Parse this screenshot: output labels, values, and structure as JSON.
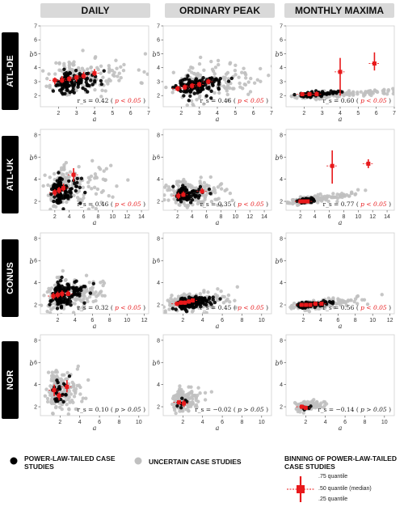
{
  "columns": [
    "DAILY",
    "ORDINARY PEAK",
    "MONTHLY MAXIMA"
  ],
  "rows": [
    "ATL-DE",
    "ATL-UK",
    "CONUS",
    "NOR"
  ],
  "legend": {
    "power_law": "POWER-LAW-TAILED CASE STUDIES",
    "uncertain": "UNCERTAIN CASE STUDIES",
    "binning_title": "BINNING OF POWER-LAW-TAILED CASE STUDIES",
    "q75": ".75 quantile",
    "q50": ".50 quantile (median)",
    "q25": ".25 quantile"
  },
  "colors": {
    "power_law": "#000000",
    "uncertain": "#c0c0c0",
    "binning": "#e8191b"
  },
  "chart_data": [
    {
      "type": "scatter",
      "row": "ATL-DE",
      "column": "DAILY",
      "xlabel": "a",
      "ylabel": "b",
      "xlim": [
        1,
        7
      ],
      "ylim": [
        1.2,
        7
      ],
      "xticks": [
        2,
        3,
        4,
        5,
        6,
        7
      ],
      "yticks": [
        2,
        3,
        4,
        5,
        6,
        7
      ],
      "stat_label": "r_s = 0.42",
      "p_label": "p < 0.05",
      "seed": 11,
      "cloud_black": {
        "cx": 2.6,
        "cy": 3.0,
        "sx": 0.55,
        "sy": 0.35,
        "n": 120
      },
      "cloud_gray": {
        "cx": 3.0,
        "cy": 3.3,
        "sx": 1.1,
        "sy": 0.7,
        "n": 170
      },
      "bins": [
        {
          "x": 1.8,
          "q25": 2.8,
          "q50": 3.1,
          "q75": 3.3
        },
        {
          "x": 2.2,
          "q25": 2.9,
          "q50": 3.1,
          "q75": 3.4
        },
        {
          "x": 2.6,
          "q25": 3.0,
          "q50": 3.2,
          "q75": 3.4
        },
        {
          "x": 3.0,
          "q25": 3.0,
          "q50": 3.3,
          "q75": 3.5
        },
        {
          "x": 3.4,
          "q25": 3.2,
          "q50": 3.4,
          "q75": 3.7
        },
        {
          "x": 4.0,
          "q25": 3.4,
          "q50": 3.6,
          "q75": 3.9
        }
      ]
    },
    {
      "type": "scatter",
      "row": "ATL-DE",
      "column": "ORDINARY PEAK",
      "xlabel": "a",
      "ylabel": "b",
      "xlim": [
        1,
        7
      ],
      "ylim": [
        1.2,
        7
      ],
      "xticks": [
        2,
        3,
        4,
        5,
        6,
        7
      ],
      "yticks": [
        2,
        3,
        4,
        5,
        6,
        7
      ],
      "stat_label": "r_s = 0.46",
      "p_label": "p < 0.05",
      "seed": 23,
      "cloud_black": {
        "cx": 2.6,
        "cy": 2.7,
        "sx": 0.6,
        "sy": 0.35,
        "n": 130
      },
      "cloud_gray": {
        "cx": 3.1,
        "cy": 2.9,
        "sx": 1.2,
        "sy": 0.6,
        "n": 160
      },
      "bins": [
        {
          "x": 1.8,
          "q25": 2.3,
          "q50": 2.5,
          "q75": 2.7
        },
        {
          "x": 2.2,
          "q25": 2.4,
          "q50": 2.6,
          "q75": 2.8
        },
        {
          "x": 2.6,
          "q25": 2.5,
          "q50": 2.7,
          "q75": 2.9
        },
        {
          "x": 3.0,
          "q25": 2.6,
          "q50": 2.8,
          "q75": 3.0
        },
        {
          "x": 3.5,
          "q25": 2.8,
          "q50": 3.0,
          "q75": 3.2
        }
      ]
    },
    {
      "type": "scatter",
      "row": "ATL-DE",
      "column": "MONTHLY MAXIMA",
      "xlabel": "a",
      "ylabel": "b",
      "xlim": [
        1,
        7
      ],
      "ylim": [
        1.2,
        7
      ],
      "xticks": [
        2,
        3,
        4,
        5,
        6,
        7
      ],
      "yticks": [
        2,
        3,
        4,
        5,
        6,
        7
      ],
      "stat_label": "r_s = 0.60",
      "p_label": "p < 0.05",
      "seed": 37,
      "cloud_black": {
        "cx": 2.4,
        "cy": 2.1,
        "sx": 0.5,
        "sy": 0.1,
        "n": 80
      },
      "cloud_gray": {
        "cx": 3.3,
        "cy": 2.05,
        "sx": 1.4,
        "sy": 0.12,
        "n": 170
      },
      "bins": [
        {
          "x": 1.9,
          "q25": 2.0,
          "q50": 2.1,
          "q75": 2.2
        },
        {
          "x": 2.3,
          "q25": 2.0,
          "q50": 2.1,
          "q75": 2.2
        },
        {
          "x": 2.7,
          "q25": 2.0,
          "q50": 2.1,
          "q75": 2.3
        },
        {
          "x": 4.0,
          "q25": 2.0,
          "q50": 3.7,
          "q75": 4.7
        },
        {
          "x": 5.9,
          "q25": 3.8,
          "q50": 4.3,
          "q75": 5.1
        }
      ]
    },
    {
      "type": "scatter",
      "row": "ATL-UK",
      "column": "DAILY",
      "xlabel": "a",
      "ylabel": "b",
      "xlim": [
        0,
        15
      ],
      "ylim": [
        1.2,
        8.5
      ],
      "xticks": [
        2,
        4,
        6,
        8,
        10,
        12,
        14
      ],
      "yticks": [
        2,
        4,
        6,
        8
      ],
      "stat_label": "r_s = 0.46",
      "p_label": "p < 0.05",
      "seed": 41,
      "cloud_black": {
        "cx": 2.8,
        "cy": 3.0,
        "sx": 0.9,
        "sy": 0.6,
        "n": 110
      },
      "cloud_gray": {
        "cx": 3.5,
        "cy": 3.3,
        "sx": 2.2,
        "sy": 0.9,
        "n": 170
      },
      "bins": [
        {
          "x": 2.0,
          "q25": 2.5,
          "q50": 2.8,
          "q75": 3.1
        },
        {
          "x": 2.6,
          "q25": 2.7,
          "q50": 3.0,
          "q75": 3.3
        },
        {
          "x": 3.2,
          "q25": 2.9,
          "q50": 3.2,
          "q75": 3.6
        },
        {
          "x": 4.6,
          "q25": 3.8,
          "q50": 4.4,
          "q75": 5.0
        }
      ]
    },
    {
      "type": "scatter",
      "row": "ATL-UK",
      "column": "ORDINARY PEAK",
      "xlabel": "a",
      "ylabel": "b",
      "xlim": [
        0,
        15
      ],
      "ylim": [
        1.2,
        8.5
      ],
      "xticks": [
        2,
        4,
        6,
        8,
        10,
        12,
        14
      ],
      "yticks": [
        2,
        4,
        6,
        8
      ],
      "stat_label": "r_s = 0.35",
      "p_label": "p < 0.05",
      "seed": 53,
      "cloud_black": {
        "cx": 2.9,
        "cy": 2.6,
        "sx": 1.0,
        "sy": 0.35,
        "n": 90
      },
      "cloud_gray": {
        "cx": 3.2,
        "cy": 2.7,
        "sx": 2.0,
        "sy": 0.6,
        "n": 180
      },
      "bins": [
        {
          "x": 2.1,
          "q25": 2.2,
          "q50": 2.5,
          "q75": 2.8
        },
        {
          "x": 2.8,
          "q25": 2.4,
          "q50": 2.6,
          "q75": 2.9
        },
        {
          "x": 5.4,
          "q25": 2.7,
          "q50": 2.9,
          "q75": 3.2
        }
      ]
    },
    {
      "type": "scatter",
      "row": "ATL-UK",
      "column": "MONTHLY MAXIMA",
      "xlabel": "a",
      "ylabel": "b",
      "xlim": [
        0,
        15
      ],
      "ylim": [
        1.2,
        8.5
      ],
      "xticks": [
        2,
        4,
        6,
        8,
        10,
        12,
        14
      ],
      "yticks": [
        2,
        4,
        6,
        8
      ],
      "stat_label": "r_s = 0.77",
      "p_label": "p < 0.05",
      "seed": 67,
      "cloud_black": {
        "cx": 2.5,
        "cy": 2.05,
        "sx": 0.6,
        "sy": 0.1,
        "n": 60
      },
      "cloud_gray": {
        "cx": 3.0,
        "cy": 2.1,
        "sx": 2.0,
        "sy": 0.15,
        "n": 160
      },
      "bins": [
        {
          "x": 2.0,
          "q25": 1.9,
          "q50": 2.0,
          "q75": 2.1
        },
        {
          "x": 2.5,
          "q25": 1.9,
          "q50": 2.0,
          "q75": 2.1
        },
        {
          "x": 3.0,
          "q25": 1.9,
          "q50": 2.0,
          "q75": 2.1
        },
        {
          "x": 6.4,
          "q25": 3.6,
          "q50": 5.2,
          "q75": 6.6
        },
        {
          "x": 11.4,
          "q25": 5.0,
          "q50": 5.4,
          "q75": 5.8
        }
      ]
    },
    {
      "type": "scatter",
      "row": "CONUS",
      "column": "DAILY",
      "xlabel": "a",
      "ylabel": "b",
      "xlim": [
        0,
        12.5
      ],
      "ylim": [
        1.2,
        8.5
      ],
      "xticks": [
        2,
        4,
        6,
        8,
        10,
        12
      ],
      "yticks": [
        2,
        4,
        6,
        8
      ],
      "stat_label": "r_s = 0.32",
      "p_label": "p < 0.05",
      "seed": 79,
      "cloud_black": {
        "cx": 2.5,
        "cy": 2.9,
        "sx": 0.9,
        "sy": 0.55,
        "n": 130
      },
      "cloud_gray": {
        "cx": 2.6,
        "cy": 2.9,
        "sx": 1.5,
        "sy": 0.7,
        "n": 220
      },
      "bins": [
        {
          "x": 1.5,
          "q25": 2.5,
          "q50": 2.8,
          "q75": 3.1
        },
        {
          "x": 2.0,
          "q25": 2.6,
          "q50": 2.9,
          "q75": 3.2
        },
        {
          "x": 2.5,
          "q25": 2.7,
          "q50": 3.0,
          "q75": 3.3
        },
        {
          "x": 3.2,
          "q25": 2.8,
          "q50": 3.0,
          "q75": 3.3
        }
      ]
    },
    {
      "type": "scatter",
      "row": "CONUS",
      "column": "ORDINARY PEAK",
      "xlabel": "a",
      "ylabel": "b",
      "xlim": [
        0,
        11
      ],
      "ylim": [
        1.2,
        8.5
      ],
      "xticks": [
        2,
        4,
        6,
        8,
        10
      ],
      "yticks": [
        2,
        4,
        6,
        8
      ],
      "stat_label": "r_s = 0.45",
      "p_label": "p < 0.05",
      "seed": 83,
      "cloud_black": {
        "cx": 2.4,
        "cy": 2.2,
        "sx": 0.9,
        "sy": 0.25,
        "n": 150
      },
      "cloud_gray": {
        "cx": 2.4,
        "cy": 2.2,
        "sx": 1.4,
        "sy": 0.4,
        "n": 220
      },
      "bins": [
        {
          "x": 1.4,
          "q25": 1.9,
          "q50": 2.1,
          "q75": 2.3
        },
        {
          "x": 1.8,
          "q25": 2.0,
          "q50": 2.2,
          "q75": 2.4
        },
        {
          "x": 2.2,
          "q25": 2.0,
          "q50": 2.2,
          "q75": 2.4
        },
        {
          "x": 2.6,
          "q25": 2.1,
          "q50": 2.3,
          "q75": 2.5
        },
        {
          "x": 3.0,
          "q25": 2.2,
          "q50": 2.4,
          "q75": 2.6
        }
      ]
    },
    {
      "type": "scatter",
      "row": "CONUS",
      "column": "MONTHLY MAXIMA",
      "xlabel": "a",
      "ylabel": "b",
      "xlim": [
        0,
        12.5
      ],
      "ylim": [
        1.2,
        8.5
      ],
      "xticks": [
        2,
        4,
        6,
        8,
        10,
        12
      ],
      "yticks": [
        2,
        4,
        6,
        8
      ],
      "stat_label": "r_s = 0.56",
      "p_label": "p < 0.05",
      "seed": 97,
      "cloud_black": {
        "cx": 2.6,
        "cy": 2.0,
        "sx": 1.0,
        "sy": 0.12,
        "n": 90
      },
      "cloud_gray": {
        "cx": 2.8,
        "cy": 2.0,
        "sx": 1.8,
        "sy": 0.2,
        "n": 200
      },
      "bins": [
        {
          "x": 1.8,
          "q25": 1.9,
          "q50": 2.0,
          "q75": 2.1
        },
        {
          "x": 2.3,
          "q25": 1.9,
          "q50": 2.0,
          "q75": 2.1
        },
        {
          "x": 2.8,
          "q25": 1.9,
          "q50": 2.0,
          "q75": 2.1
        },
        {
          "x": 3.4,
          "q25": 1.9,
          "q50": 2.1,
          "q75": 2.2
        },
        {
          "x": 4.1,
          "q25": 2.0,
          "q50": 2.1,
          "q75": 2.2
        }
      ]
    },
    {
      "type": "scatter",
      "row": "NOR",
      "column": "DAILY",
      "xlabel": "a",
      "ylabel": "b",
      "xlim": [
        0,
        11
      ],
      "ylim": [
        1.2,
        8.5
      ],
      "xticks": [
        2,
        4,
        6,
        8,
        10
      ],
      "yticks": [
        2,
        4,
        6,
        8
      ],
      "stat_label": "r_s = 0.10",
      "p_label": "p > 0.05",
      "seed": 101,
      "cloud_black": {
        "cx": 1.8,
        "cy": 3.3,
        "sx": 0.4,
        "sy": 0.6,
        "n": 25
      },
      "cloud_gray": {
        "cx": 1.8,
        "cy": 3.4,
        "sx": 0.8,
        "sy": 0.9,
        "n": 170
      },
      "bins": [
        {
          "x": 1.4,
          "q25": 3.0,
          "q50": 3.5,
          "q75": 4.0
        },
        {
          "x": 1.9,
          "q25": 2.6,
          "q50": 3.0,
          "q75": 3.3
        },
        {
          "x": 2.7,
          "q25": 3.3,
          "q50": 3.8,
          "q75": 4.4
        }
      ]
    },
    {
      "type": "scatter",
      "row": "NOR",
      "column": "ORDINARY PEAK",
      "xlabel": "a",
      "ylabel": "b",
      "xlim": [
        0,
        11
      ],
      "ylim": [
        1.2,
        8.5
      ],
      "xticks": [
        2,
        4,
        6,
        8,
        10
      ],
      "yticks": [
        2,
        4,
        6,
        8
      ],
      "stat_label": "r_s = −0.02",
      "p_label": "p > 0.05",
      "seed": 113,
      "cloud_black": {
        "cx": 2.0,
        "cy": 2.4,
        "sx": 0.4,
        "sy": 0.3,
        "n": 10
      },
      "cloud_gray": {
        "cx": 1.9,
        "cy": 2.5,
        "sx": 0.7,
        "sy": 0.5,
        "n": 160
      },
      "bins": [
        {
          "x": 1.6,
          "q25": 2.2,
          "q50": 2.4,
          "q75": 2.6
        },
        {
          "x": 2.1,
          "q25": 2.0,
          "q50": 2.3,
          "q75": 2.6
        }
      ]
    },
    {
      "type": "scatter",
      "row": "NOR",
      "column": "MONTHLY MAXIMA",
      "xlabel": "a",
      "ylabel": "b",
      "xlim": [
        0,
        11
      ],
      "ylim": [
        1.2,
        8.5
      ],
      "xticks": [
        2,
        4,
        6,
        8,
        10
      ],
      "yticks": [
        2,
        4,
        6,
        8
      ],
      "stat_label": "r_s = −0.14",
      "p_label": "p > 0.05",
      "seed": 127,
      "cloud_black": {
        "cx": 2.0,
        "cy": 2.0,
        "sx": 0.3,
        "sy": 0.1,
        "n": 8
      },
      "cloud_gray": {
        "cx": 1.9,
        "cy": 2.0,
        "sx": 0.7,
        "sy": 0.2,
        "n": 150
      },
      "bins": [
        {
          "x": 1.6,
          "q25": 1.8,
          "q50": 2.0,
          "q75": 2.2
        },
        {
          "x": 2.0,
          "q25": 1.8,
          "q50": 1.9,
          "q75": 2.1
        }
      ]
    }
  ]
}
